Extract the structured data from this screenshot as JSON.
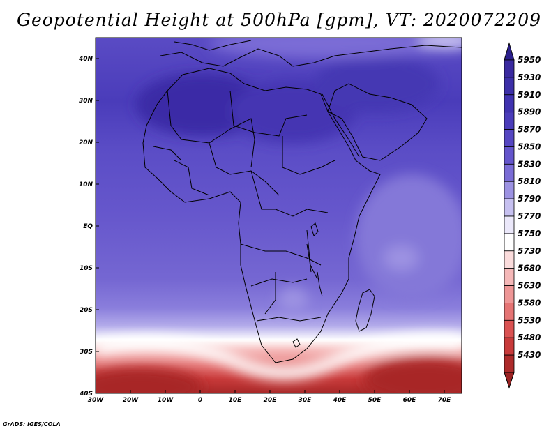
{
  "title": "Geopotential Height at 500hPa [gpm], VT: 2020072209",
  "footer": "GrADS: IGES/COLA",
  "map": {
    "lon_range": [
      -30,
      75
    ],
    "lat_range": [
      -40,
      45
    ],
    "lon_ticks": [
      {
        "value": -30,
        "label": "30W"
      },
      {
        "value": -20,
        "label": "20W"
      },
      {
        "value": -10,
        "label": "10W"
      },
      {
        "value": 0,
        "label": "0"
      },
      {
        "value": 10,
        "label": "10E"
      },
      {
        "value": 20,
        "label": "20E"
      },
      {
        "value": 30,
        "label": "30E"
      },
      {
        "value": 40,
        "label": "40E"
      },
      {
        "value": 50,
        "label": "50E"
      },
      {
        "value": 60,
        "label": "60E"
      },
      {
        "value": 70,
        "label": "70E"
      }
    ],
    "lat_ticks": [
      {
        "value": 40,
        "label": "40N"
      },
      {
        "value": 30,
        "label": "30N"
      },
      {
        "value": 20,
        "label": "20N"
      },
      {
        "value": 10,
        "label": "10N"
      },
      {
        "value": 0,
        "label": "EQ"
      },
      {
        "value": -10,
        "label": "10S"
      },
      {
        "value": -20,
        "label": "20S"
      },
      {
        "value": -30,
        "label": "30S"
      },
      {
        "value": -40,
        "label": "40S"
      }
    ]
  },
  "colorbar": {
    "levels": [
      {
        "label": "5950",
        "color": "#3a2aa0"
      },
      {
        "label": "5930",
        "color": "#3c2fa8"
      },
      {
        "label": "5910",
        "color": "#4032b0"
      },
      {
        "label": "5890",
        "color": "#4a3cba"
      },
      {
        "label": "5870",
        "color": "#5546c2"
      },
      {
        "label": "5850",
        "color": "#6455cc"
      },
      {
        "label": "5830",
        "color": "#7a6cd6"
      },
      {
        "label": "5810",
        "color": "#9c92e2"
      },
      {
        "label": "5790",
        "color": "#c6c0f0"
      },
      {
        "label": "5770",
        "color": "#ebe8fa"
      },
      {
        "label": "5750",
        "color": "#ffffff"
      },
      {
        "label": "5730",
        "color": "#fbdcdc"
      },
      {
        "label": "5680",
        "color": "#f5b8b8"
      },
      {
        "label": "5630",
        "color": "#ee9696"
      },
      {
        "label": "5580",
        "color": "#e57474"
      },
      {
        "label": "5530",
        "color": "#da5252"
      },
      {
        "label": "5480",
        "color": "#c83a3a"
      },
      {
        "label": "5430",
        "color": "#ad2a2a"
      }
    ],
    "top_cap_color": "#2b1f8c",
    "bottom_cap_color": "#9a2222"
  }
}
